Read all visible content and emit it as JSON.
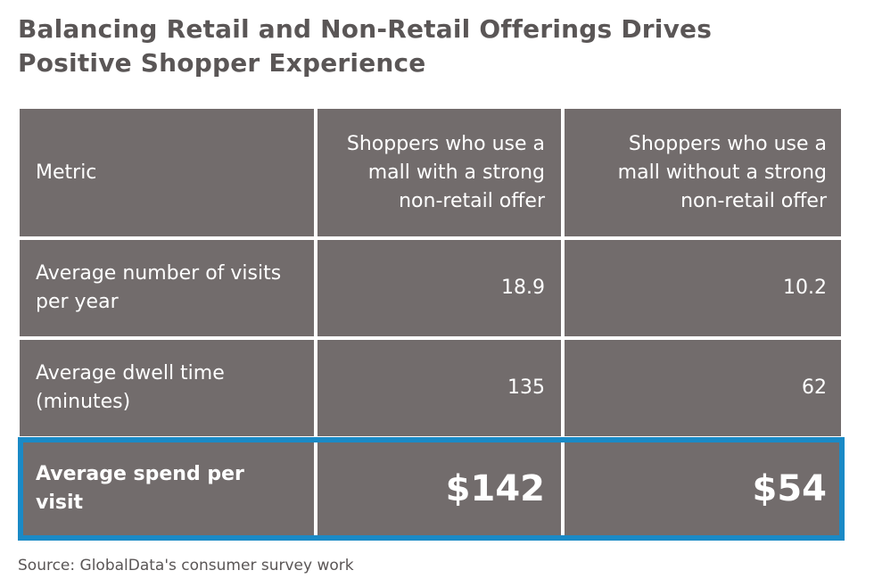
{
  "title_line1": "Balancing Retail and Non-Retail Offerings Drives",
  "title_line2": "Positive Shopper Experience",
  "colors": {
    "cell": "#726c6c",
    "highlight_border": "#1a8ac6",
    "text": "#ffffff",
    "title": "#5a5656"
  },
  "chart_data": {
    "type": "table",
    "columns": [
      "Metric",
      "Shoppers who use a mall with a strong non-retail offer",
      "Shoppers who use a mall without a strong non-retail offer"
    ],
    "rows": [
      [
        "Average number of visits per year",
        "18.9",
        "10.2"
      ],
      [
        "Average dwell time (minutes)",
        "135",
        "62"
      ],
      [
        "Average spend per visit",
        "$142",
        "$54"
      ]
    ],
    "highlighted_row": "Average spend per visit"
  },
  "source": "Source: GlobalData's consumer survey work"
}
